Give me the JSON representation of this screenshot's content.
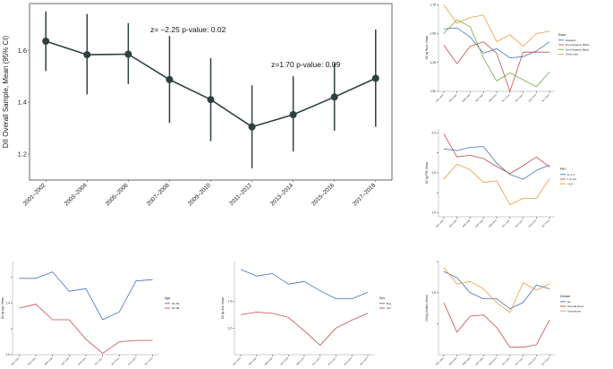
{
  "chart_data": [
    {
      "id": "main",
      "type": "line",
      "title": "",
      "xlabel": "",
      "ylabel": "DII Overall Sample, Mean (95% CI)",
      "ylim": [
        1.1,
        1.78
      ],
      "yticks": [
        1.2,
        1.4,
        1.6
      ],
      "grid": false,
      "categories": [
        "2001–2002",
        "2003–2004",
        "2005–2006",
        "2007–2008",
        "2009–2010",
        "2011–2012",
        "2013–2014",
        "2015–2016",
        "2017–2018"
      ],
      "series": [
        {
          "values": [
            1.635,
            1.583,
            1.585,
            1.487,
            1.41,
            1.305,
            1.352,
            1.42,
            1.492
          ],
          "ci_low": [
            1.52,
            1.43,
            1.47,
            1.32,
            1.25,
            1.145,
            1.21,
            1.29,
            1.305
          ],
          "ci_high": [
            1.75,
            1.74,
            1.705,
            1.655,
            1.57,
            1.465,
            1.5,
            1.55,
            1.68
          ],
          "color": "#2f4040"
        }
      ],
      "annotations": [
        {
          "text": "z= –2.25   p-value: 0.02"
        },
        {
          "text": "z=1.70   p-value: 0.09"
        }
      ]
    },
    {
      "id": "race",
      "type": "line",
      "ylabel": "DII by Race, Mean",
      "ylim": [
        1.0,
        1.76
      ],
      "yticks": [
        1.0,
        1.25,
        1.5,
        1.75
      ],
      "ytick_labels": [
        "1.00",
        "1.25",
        "1.50",
        "1.75"
      ],
      "categories": [
        "2001–2002",
        "2003–2004",
        "2005–2006",
        "2007–2008",
        "2009–2010",
        "2011–2012",
        "2013–2014",
        "2015–2016",
        "2017–2018"
      ],
      "legend": {
        "title": "Race",
        "position": "right"
      },
      "series": [
        {
          "name": "Hispanic",
          "color": "#4472c4",
          "values": [
            1.54,
            1.55,
            1.47,
            1.33,
            1.37,
            1.29,
            1.3,
            1.35,
            1.43
          ]
        },
        {
          "name": "Non-Hispanic White",
          "color": "#c0504d",
          "values": [
            1.4,
            1.24,
            1.39,
            1.43,
            1.33,
            1.0,
            1.34,
            1.34,
            1.34
          ]
        },
        {
          "name": "Non-Hispanic Black",
          "color": "#70ad47",
          "values": [
            1.5,
            1.62,
            1.56,
            1.29,
            1.09,
            1.16,
            1.1,
            1.04,
            1.17
          ]
        },
        {
          "name": "Other race",
          "color": "#ed9a3f",
          "values": [
            1.75,
            1.59,
            1.64,
            1.66,
            1.43,
            1.49,
            1.39,
            1.5,
            1.52
          ]
        }
      ]
    },
    {
      "id": "pir",
      "type": "line",
      "ylabel": "DII by PIR, Mean",
      "ylim": [
        0.95,
        2.05
      ],
      "yticks": [
        1.0,
        1.25,
        1.5,
        1.75,
        2.0
      ],
      "ytick_labels": [
        "1.0",
        "",
        "1.5",
        "",
        "2.0"
      ],
      "categories": [
        "2001–2002",
        "2003–2004",
        "2005–2006",
        "2007–2008",
        "2009–2010",
        "2011–2012",
        "2013–2014",
        "2015–2016",
        "2017–2018"
      ],
      "legend": {
        "title": "PIR",
        "position": "right"
      },
      "series": [
        {
          "name": "0–1.3",
          "color": "#4472c4",
          "values": [
            1.8,
            1.78,
            1.82,
            1.83,
            1.62,
            1.48,
            1.42,
            1.53,
            1.6
          ]
        },
        {
          "name": "1.3–3.5",
          "color": "#c0504d",
          "values": [
            1.99,
            1.7,
            1.72,
            1.68,
            1.58,
            1.49,
            1.59,
            1.7,
            1.57
          ]
        },
        {
          "name": ">3.5",
          "color": "#ed9a3f",
          "values": [
            1.42,
            1.61,
            1.54,
            1.38,
            1.4,
            1.1,
            1.18,
            1.18,
            1.43
          ]
        }
      ]
    },
    {
      "id": "age",
      "type": "line",
      "ylabel": "DII by Age, Mean",
      "ylim": [
        1.0,
        1.72
      ],
      "yticks": [
        1.0,
        1.2,
        1.4,
        1.6
      ],
      "ytick_labels": [
        "1.0",
        "",
        "1.4",
        ""
      ],
      "categories": [
        "2001–2002",
        "2003–2004",
        "2005–2006",
        "2007–2008",
        "2009–2010",
        "2011–2012",
        "2013–2014",
        "2015–2016",
        "2017–2018"
      ],
      "legend": {
        "title": "Age",
        "position": "right"
      },
      "series": [
        {
          "name": "20–59",
          "color": "#4472c4",
          "values": [
            1.59,
            1.59,
            1.64,
            1.49,
            1.51,
            1.27,
            1.33,
            1.57,
            1.58
          ]
        },
        {
          "name": "60–89",
          "color": "#c0504d",
          "values": [
            1.36,
            1.39,
            1.27,
            1.27,
            1.12,
            1.01,
            1.1,
            1.11,
            1.11
          ]
        }
      ]
    },
    {
      "id": "sex",
      "type": "line",
      "ylabel": "DII by Sex, Mean",
      "ylim": [
        1.0,
        1.7
      ],
      "yticks": [
        1.2,
        1.4
      ],
      "ytick_labels": [
        "1.2",
        "1.4"
      ],
      "categories": [
        "2001–2002",
        "2003–2004",
        "2005–2006",
        "2007–2008",
        "2009–2010",
        "2011–2012",
        "2013–2014",
        "2015–2016",
        "2017–2018"
      ],
      "legend": {
        "title": "Sex",
        "position": "right"
      },
      "series": [
        {
          "name": "Boy",
          "color": "#4472c4",
          "values": [
            1.64,
            1.59,
            1.61,
            1.53,
            1.55,
            1.48,
            1.42,
            1.42,
            1.47
          ]
        },
        {
          "name": "Girl",
          "color": "#c0504d",
          "values": [
            1.3,
            1.32,
            1.31,
            1.28,
            1.18,
            1.07,
            1.2,
            1.26,
            1.31
          ]
        }
      ]
    },
    {
      "id": "drinker",
      "type": "line",
      "ylabel": "DII by Drinker, Mean",
      "ylim": [
        1.0,
        1.75
      ],
      "yticks": [
        1.25,
        1.5,
        1.75
      ],
      "ytick_labels": [
        "",
        "1.5",
        ""
      ],
      "categories": [
        "2001–2002",
        "2003–2004",
        "2005–2006",
        "2007–2008",
        "2009–2010",
        "2011–2012",
        "2013–2014",
        "2015–2016",
        "2017–2018"
      ],
      "legend": {
        "title": "Drinker",
        "position": "right"
      },
      "series": [
        {
          "name": "No",
          "color": "#4472c4",
          "values": [
            1.67,
            1.62,
            1.5,
            1.45,
            1.45,
            1.37,
            1.42,
            1.56,
            1.53
          ]
        },
        {
          "name": "Several times",
          "color": "#c0504d",
          "values": [
            1.42,
            1.18,
            1.31,
            1.32,
            1.22,
            1.06,
            1.06,
            1.08,
            1.28
          ]
        },
        {
          "name": "Sometimes",
          "color": "#ed9a3f",
          "values": [
            1.7,
            1.57,
            1.59,
            1.53,
            1.42,
            1.34,
            1.58,
            1.52,
            1.57
          ]
        }
      ]
    }
  ]
}
